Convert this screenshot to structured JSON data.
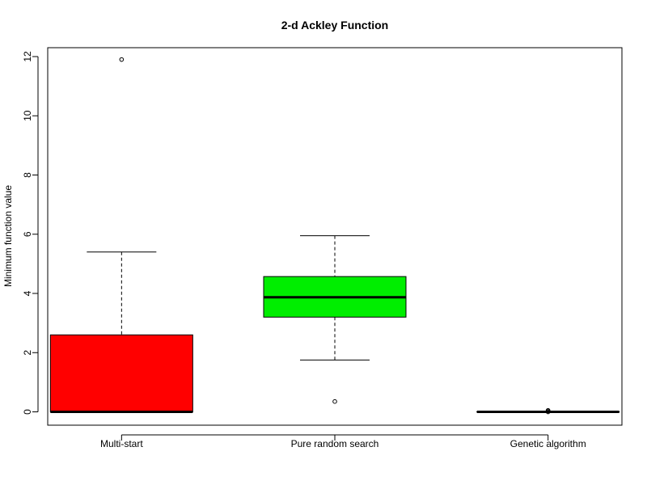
{
  "chart_data": {
    "type": "boxplot",
    "title": "2-d Ackley Function",
    "xlabel": "",
    "ylabel": "Minimum function value",
    "ylim": [
      -0.45,
      12.3
    ],
    "yticks": [
      0,
      2,
      4,
      6,
      8,
      10,
      12
    ],
    "grid": false,
    "legend": "none",
    "categories": [
      "Multi-start",
      "Pure random search",
      "Genetic algorithm"
    ],
    "boxes": [
      {
        "name": "Multi-start",
        "color": "#ff0000",
        "whisker_low": 0.0,
        "q1": 0.0,
        "median": 0.0,
        "q3": 2.6,
        "whisker_high": 5.4,
        "outliers": [
          11.9
        ]
      },
      {
        "name": "Pure random search",
        "color": "#00ee00",
        "whisker_low": 1.75,
        "q1": 3.2,
        "median": 3.87,
        "q3": 4.57,
        "whisker_high": 5.95,
        "outliers": [
          0.35
        ]
      },
      {
        "name": "Genetic algorithm",
        "color": "#0000ff",
        "whisker_low": 0.0,
        "q1": 0.0,
        "median": 0.0,
        "q3": 0.0,
        "whisker_high": 0.0,
        "outliers": [
          0.0,
          0.03,
          0.05
        ]
      }
    ]
  }
}
